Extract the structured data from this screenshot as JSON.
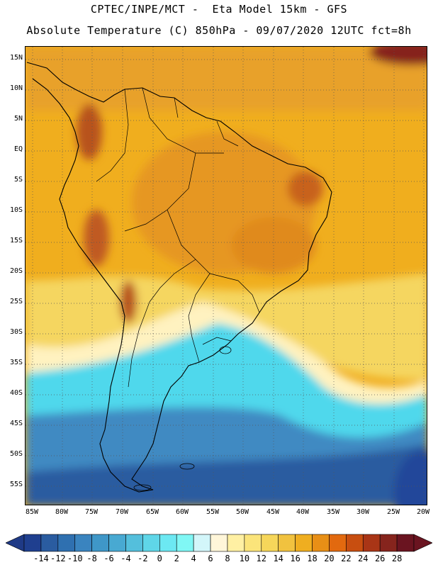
{
  "header": {
    "line1": "CPTEC/INPE/MCT -  Eta Model 15km - GFS",
    "line2": "Absolute Temperature (C) 850hPa - 09/07/2020 12UTC fct=8h"
  },
  "map": {
    "lat_labels": [
      "15N",
      "10N",
      "5N",
      "EQ",
      "5S",
      "10S",
      "15S",
      "20S",
      "25S",
      "30S",
      "35S",
      "40S",
      "45S",
      "50S",
      "55S"
    ],
    "lon_labels": [
      "85W",
      "80W",
      "75W",
      "70W",
      "65W",
      "60W",
      "55W",
      "50W",
      "45W",
      "40W",
      "35W",
      "30W",
      "25W",
      "20W"
    ],
    "grid": "dotted",
    "field_colors": {
      "tropical_ocean": "#f0ae1e",
      "north_ocean": "#e8a12a",
      "continent_warm": "#e69722",
      "hot_spots": "#b8521f",
      "subtropical_belt": "#f5d660",
      "pale_front": "#fff2c0",
      "cold_front_cyan": "#4fd8ec",
      "southern_ocean": "#3f8ac2",
      "deep_south": "#23469a",
      "coastline": "#000000"
    }
  },
  "colorbar": {
    "labels": [
      "-14",
      "-12",
      "-10",
      "-8",
      "-6",
      "-4",
      "-2",
      "0",
      "2",
      "4",
      "6",
      "8",
      "10",
      "12",
      "14",
      "16",
      "18",
      "20",
      "22",
      "24",
      "26",
      "28"
    ],
    "colors": [
      "#1f3f8f",
      "#2a5ca0",
      "#2f70b0",
      "#3a84bf",
      "#3f97c8",
      "#48a9d2",
      "#54bfdc",
      "#5fd6e8",
      "#6ce8f2",
      "#80f7f5",
      "#d3f6fa",
      "#fff6d9",
      "#fff0a3",
      "#fbe47a",
      "#f6d65a",
      "#f1c23f",
      "#efae20",
      "#e88f16",
      "#e2690f",
      "#c84e10",
      "#a93516",
      "#86241d",
      "#6a1420"
    ]
  }
}
